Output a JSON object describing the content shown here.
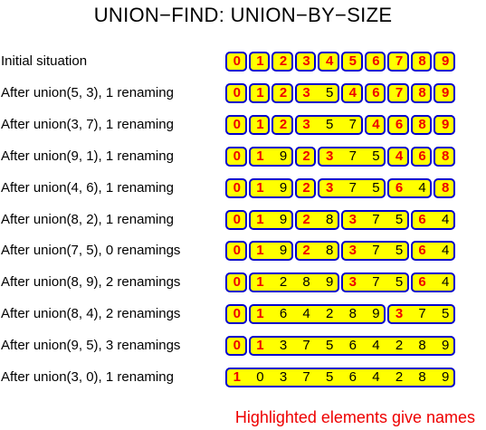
{
  "title": "UNION−FIND: UNION−BY−SIZE",
  "footer": "Highlighted elements give names",
  "colors": {
    "group_fill": "#ffff00",
    "group_border": "#0000cc",
    "name_text": "#ee0000",
    "footer_text": "#ee0000"
  },
  "rows": [
    {
      "label": "Initial situation",
      "groups": [
        [
          0
        ],
        [
          1
        ],
        [
          2
        ],
        [
          3
        ],
        [
          4
        ],
        [
          5
        ],
        [
          6
        ],
        [
          7
        ],
        [
          8
        ],
        [
          9
        ]
      ]
    },
    {
      "label": "After union(5, 3), 1 renaming",
      "groups": [
        [
          0
        ],
        [
          1
        ],
        [
          2
        ],
        [
          3,
          5
        ],
        [
          4
        ],
        [
          6
        ],
        [
          7
        ],
        [
          8
        ],
        [
          9
        ]
      ]
    },
    {
      "label": "After union(3, 7), 1 renaming",
      "groups": [
        [
          0
        ],
        [
          1
        ],
        [
          2
        ],
        [
          3,
          5,
          7
        ],
        [
          4
        ],
        [
          6
        ],
        [
          8
        ],
        [
          9
        ]
      ]
    },
    {
      "label": "After union(9, 1), 1 renaming",
      "groups": [
        [
          0
        ],
        [
          1,
          9
        ],
        [
          2
        ],
        [
          3,
          7,
          5
        ],
        [
          4
        ],
        [
          6
        ],
        [
          8
        ]
      ]
    },
    {
      "label": "After union(4, 6), 1 renaming",
      "groups": [
        [
          0
        ],
        [
          1,
          9
        ],
        [
          2
        ],
        [
          3,
          7,
          5
        ],
        [
          6,
          4
        ],
        [
          8
        ]
      ]
    },
    {
      "label": "After union(8, 2), 1 renaming",
      "groups": [
        [
          0
        ],
        [
          1,
          9
        ],
        [
          2,
          8
        ],
        [
          3,
          7,
          5
        ],
        [
          6,
          4
        ]
      ]
    },
    {
      "label": "After union(7, 5), 0 renamings",
      "groups": [
        [
          0
        ],
        [
          1,
          9
        ],
        [
          2,
          8
        ],
        [
          3,
          7,
          5
        ],
        [
          6,
          4
        ]
      ]
    },
    {
      "label": "After union(8, 9), 2 renamings",
      "groups": [
        [
          0
        ],
        [
          1,
          2,
          8,
          9
        ],
        [
          3,
          7,
          5
        ],
        [
          6,
          4
        ]
      ]
    },
    {
      "label": "After union(8, 4), 2 renamings",
      "groups": [
        [
          0
        ],
        [
          1,
          6,
          4,
          2,
          8,
          9
        ],
        [
          3,
          7,
          5
        ]
      ]
    },
    {
      "label": "After union(9, 5), 3 renamings",
      "groups": [
        [
          0
        ],
        [
          1,
          3,
          7,
          5,
          6,
          4,
          2,
          8,
          9
        ]
      ]
    },
    {
      "label": "After union(3, 0), 1 renaming",
      "groups": [
        [
          1,
          0,
          3,
          7,
          5,
          6,
          4,
          2,
          8,
          9
        ]
      ]
    }
  ]
}
